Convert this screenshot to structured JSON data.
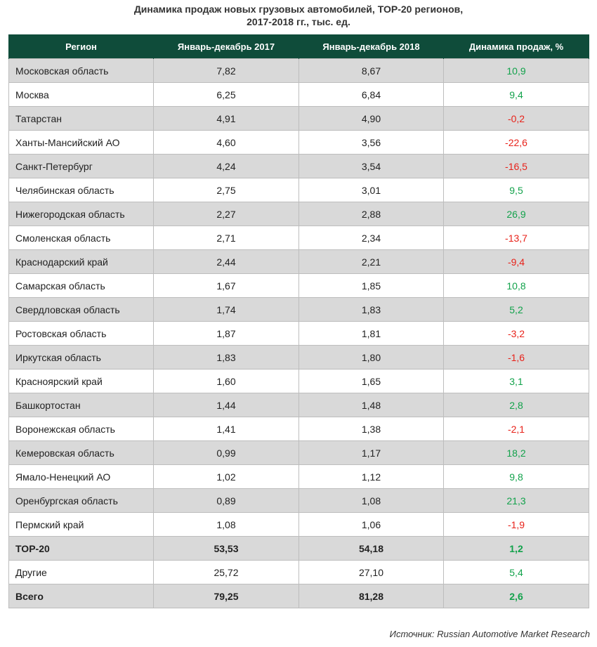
{
  "title": {
    "line1": "Динамика продаж новых грузовых автомобилей, TOP-20 регионов,",
    "line2": "2017-2018 гг., тыс. ед."
  },
  "columns": [
    "Регион",
    "Январь-декабрь 2017",
    "Январь-декабрь 2018",
    "Динамика продаж, %"
  ],
  "rows": [
    {
      "region": "Московская область",
      "y2017": "7,82",
      "y2018": "8,67",
      "dyn": "10,9",
      "trend": "pos"
    },
    {
      "region": "Москва",
      "y2017": "6,25",
      "y2018": "6,84",
      "dyn": "9,4",
      "trend": "pos"
    },
    {
      "region": "Татарстан",
      "y2017": "4,91",
      "y2018": "4,90",
      "dyn": "-0,2",
      "trend": "neg"
    },
    {
      "region": "Ханты-Мансийский АО",
      "y2017": "4,60",
      "y2018": "3,56",
      "dyn": "-22,6",
      "trend": "neg"
    },
    {
      "region": "Санкт-Петербург",
      "y2017": "4,24",
      "y2018": "3,54",
      "dyn": "-16,5",
      "trend": "neg"
    },
    {
      "region": "Челябинская область",
      "y2017": "2,75",
      "y2018": "3,01",
      "dyn": "9,5",
      "trend": "pos"
    },
    {
      "region": "Нижегородская область",
      "y2017": "2,27",
      "y2018": "2,88",
      "dyn": "26,9",
      "trend": "pos"
    },
    {
      "region": "Смоленская область",
      "y2017": "2,71",
      "y2018": "2,34",
      "dyn": "-13,7",
      "trend": "neg"
    },
    {
      "region": "Краснодарский край",
      "y2017": "2,44",
      "y2018": "2,21",
      "dyn": "-9,4",
      "trend": "neg"
    },
    {
      "region": "Самарская область",
      "y2017": "1,67",
      "y2018": "1,85",
      "dyn": "10,8",
      "trend": "pos"
    },
    {
      "region": "Свердловская область",
      "y2017": "1,74",
      "y2018": "1,83",
      "dyn": "5,2",
      "trend": "pos"
    },
    {
      "region": "Ростовская область",
      "y2017": "1,87",
      "y2018": "1,81",
      "dyn": "-3,2",
      "trend": "neg"
    },
    {
      "region": "Иркутская область",
      "y2017": "1,83",
      "y2018": "1,80",
      "dyn": "-1,6",
      "trend": "neg"
    },
    {
      "region": "Красноярский край",
      "y2017": "1,60",
      "y2018": "1,65",
      "dyn": "3,1",
      "trend": "pos"
    },
    {
      "region": "Башкортостан",
      "y2017": "1,44",
      "y2018": "1,48",
      "dyn": "2,8",
      "trend": "pos"
    },
    {
      "region": "Воронежская область",
      "y2017": "1,41",
      "y2018": "1,38",
      "dyn": "-2,1",
      "trend": "neg"
    },
    {
      "region": "Кемеровская область",
      "y2017": "0,99",
      "y2018": "1,17",
      "dyn": "18,2",
      "trend": "pos"
    },
    {
      "region": "Ямало-Ненецкий АО",
      "y2017": "1,02",
      "y2018": "1,12",
      "dyn": "9,8",
      "trend": "pos"
    },
    {
      "region": "Оренбургская область",
      "y2017": "0,89",
      "y2018": "1,08",
      "dyn": "21,3",
      "trend": "pos"
    },
    {
      "region": "Пермский край",
      "y2017": "1,08",
      "y2018": "1,06",
      "dyn": "-1,9",
      "trend": "neg"
    },
    {
      "region": "TOP-20",
      "y2017": "53,53",
      "y2018": "54,18",
      "dyn": "1,2",
      "trend": "pos",
      "bold": true
    },
    {
      "region": "Другие",
      "y2017": "25,72",
      "y2018": "27,10",
      "dyn": "5,4",
      "trend": "pos"
    },
    {
      "region": "Всего",
      "y2017": "79,25",
      "y2018": "81,28",
      "dyn": "2,6",
      "trend": "pos",
      "bold": true
    }
  ],
  "colors": {
    "header_bg": "#0f4c3a",
    "positive": "#12a24b",
    "negative": "#e8221a",
    "alt_row": "#d9d9d9"
  },
  "source": "Источник: Russian Automotive Market Research"
}
